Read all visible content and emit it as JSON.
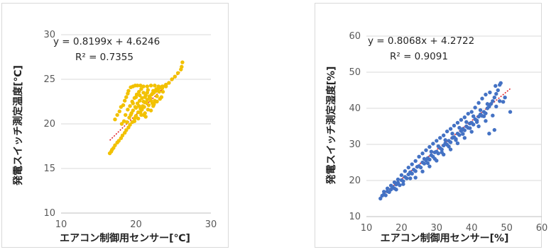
{
  "chart_data": [
    {
      "type": "scatter",
      "xlabel": "エアコン制御用センサー[℃]",
      "ylabel": "発電スイッチ測定温度[℃]",
      "xlim": [
        10,
        30
      ],
      "ylim": [
        10,
        30
      ],
      "xticks": [
        "10",
        "20",
        "30"
      ],
      "yticks": [
        "10",
        "15",
        "20",
        "25",
        "30"
      ],
      "grid": true,
      "trendline": {
        "slope": 0.8199,
        "intercept": 4.6246,
        "x_range": [
          16.5,
          26.2
        ]
      },
      "annotations": {
        "equation": "y = 0.8199x + 4.6246",
        "r2": "R² = 0.7355"
      },
      "color": "#f2c100",
      "trend_color": "#e0252b",
      "points": [
        [
          16.5,
          16.7
        ],
        [
          16.7,
          16.9
        ],
        [
          16.8,
          17.1
        ],
        [
          17.0,
          17.3
        ],
        [
          17.2,
          17.6
        ],
        [
          17.5,
          17.9
        ],
        [
          17.7,
          18.1
        ],
        [
          18.0,
          18.4
        ],
        [
          18.2,
          18.7
        ],
        [
          18.5,
          19.0
        ],
        [
          18.7,
          19.3
        ],
        [
          19.0,
          19.6
        ],
        [
          19.2,
          19.9
        ],
        [
          19.5,
          20.2
        ],
        [
          19.8,
          20.6
        ],
        [
          20.0,
          20.9
        ],
        [
          20.3,
          21.3
        ],
        [
          20.6,
          21.7
        ],
        [
          20.9,
          22.0
        ],
        [
          21.2,
          22.4
        ],
        [
          21.5,
          22.7
        ],
        [
          21.8,
          23.1
        ],
        [
          22.1,
          23.3
        ],
        [
          22.4,
          23.5
        ],
        [
          22.7,
          23.7
        ],
        [
          23.0,
          23.9
        ],
        [
          23.3,
          24.1
        ],
        [
          23.6,
          24.2
        ],
        [
          24.0,
          24.4
        ],
        [
          24.4,
          24.6
        ],
        [
          24.8,
          25.0
        ],
        [
          25.2,
          25.3
        ],
        [
          25.6,
          25.7
        ],
        [
          26.0,
          26.1
        ],
        [
          26.1,
          26.4
        ],
        [
          26.2,
          26.9
        ],
        [
          17.2,
          20.5
        ],
        [
          17.5,
          21.0
        ],
        [
          17.8,
          21.4
        ],
        [
          18.0,
          21.9
        ],
        [
          18.3,
          22.1
        ],
        [
          18.5,
          22.6
        ],
        [
          18.7,
          23.0
        ],
        [
          18.9,
          23.4
        ],
        [
          19.0,
          23.7
        ],
        [
          19.3,
          24.1
        ],
        [
          19.6,
          24.2
        ],
        [
          19.9,
          24.3
        ],
        [
          20.2,
          24.3
        ],
        [
          20.6,
          24.3
        ],
        [
          21.0,
          24.2
        ],
        [
          21.5,
          24.2
        ],
        [
          22.0,
          24.3
        ],
        [
          22.5,
          24.3
        ],
        [
          23.0,
          24.2
        ],
        [
          23.5,
          24.2
        ],
        [
          24.0,
          24.2
        ],
        [
          18.6,
          21.0
        ],
        [
          18.9,
          21.6
        ],
        [
          19.2,
          22.0
        ],
        [
          19.5,
          22.5
        ],
        [
          19.8,
          22.9
        ],
        [
          20.1,
          23.3
        ],
        [
          20.4,
          23.6
        ],
        [
          20.7,
          23.9
        ],
        [
          21.0,
          23.5
        ],
        [
          21.3,
          23.2
        ],
        [
          21.6,
          23.8
        ],
        [
          21.9,
          22.9
        ],
        [
          22.2,
          23.4
        ],
        [
          22.5,
          22.6
        ],
        [
          22.8,
          23.1
        ],
        [
          23.1,
          23.6
        ],
        [
          23.4,
          23.0
        ],
        [
          19.3,
          21.0
        ],
        [
          19.6,
          21.5
        ],
        [
          19.9,
          21.9
        ],
        [
          20.2,
          22.3
        ],
        [
          20.5,
          22.6
        ],
        [
          20.8,
          22.9
        ],
        [
          21.1,
          21.9
        ],
        [
          21.4,
          22.4
        ],
        [
          21.7,
          22.1
        ],
        [
          22.0,
          22.6
        ],
        [
          22.3,
          22.0
        ],
        [
          22.6,
          22.5
        ],
        [
          20.0,
          23.0
        ],
        [
          20.4,
          22.0
        ],
        [
          20.8,
          21.6
        ],
        [
          21.2,
          21.2
        ],
        [
          21.6,
          21.6
        ],
        [
          22.0,
          21.5
        ],
        [
          22.4,
          22.2
        ],
        [
          22.8,
          22.5
        ],
        [
          23.2,
          22.8
        ],
        [
          23.6,
          23.6
        ],
        [
          19.8,
          20.3
        ],
        [
          20.3,
          20.6
        ],
        [
          20.7,
          21.0
        ],
        [
          21.0,
          21.0
        ],
        [
          21.3,
          20.8
        ],
        [
          19.6,
          22.3
        ],
        [
          20.0,
          21.8
        ],
        [
          20.5,
          23.2
        ],
        [
          21.2,
          23.0
        ],
        [
          21.8,
          23.0
        ],
        [
          22.2,
          22.3
        ],
        [
          22.7,
          23.9
        ],
        [
          23.1,
          24.1
        ],
        [
          23.5,
          24.0
        ],
        [
          18.1,
          20.0
        ],
        [
          18.4,
          20.3
        ],
        [
          18.8,
          20.2
        ],
        [
          19.1,
          20.7
        ],
        [
          19.4,
          21.2
        ],
        [
          21.0,
          22.5
        ],
        [
          21.5,
          23.5
        ],
        [
          22.3,
          23.7
        ],
        [
          20.6,
          21.3
        ]
      ]
    },
    {
      "type": "scatter",
      "xlabel": "エアコン制御用センサー[%]",
      "ylabel": "発電スイッチ測定湿度[%]",
      "xlim": [
        10,
        60
      ],
      "ylim": [
        10,
        60
      ],
      "xticks": [
        "10",
        "20",
        "30",
        "40",
        "50",
        "60"
      ],
      "yticks": [
        "10",
        "20",
        "30",
        "40",
        "50",
        "60"
      ],
      "grid": true,
      "trendline": {
        "slope": 0.8068,
        "intercept": 4.2722,
        "x_range": [
          14,
          51
        ]
      },
      "annotations": {
        "equation": "y = 0.8068x + 4.2722",
        "r2": "R² = 0.9091"
      },
      "color": "#4472c4",
      "trend_color": "#e0252b",
      "points": [
        [
          14.0,
          15.0
        ],
        [
          14.5,
          15.8
        ],
        [
          15.0,
          16.2
        ],
        [
          15.5,
          15.9
        ],
        [
          16.0,
          17.0
        ],
        [
          16.5,
          16.8
        ],
        [
          17.0,
          17.5
        ],
        [
          17.5,
          18.2
        ],
        [
          18.0,
          17.8
        ],
        [
          18.5,
          18.9
        ],
        [
          19.0,
          19.4
        ],
        [
          19.5,
          18.7
        ],
        [
          20.0,
          20.1
        ],
        [
          20.5,
          19.8
        ],
        [
          21.0,
          21.0
        ],
        [
          21.5,
          20.6
        ],
        [
          22.0,
          21.7
        ],
        [
          22.5,
          22.3
        ],
        [
          23.0,
          21.9
        ],
        [
          23.5,
          23.0
        ],
        [
          24.0,
          22.6
        ],
        [
          24.5,
          23.8
        ],
        [
          25.0,
          24.0
        ],
        [
          25.5,
          23.6
        ],
        [
          26.0,
          25.0
        ],
        [
          26.5,
          24.7
        ],
        [
          27.0,
          25.6
        ],
        [
          27.5,
          26.2
        ],
        [
          28.0,
          25.8
        ],
        [
          28.5,
          27.0
        ],
        [
          29.0,
          26.6
        ],
        [
          29.5,
          27.8
        ],
        [
          30.0,
          28.0
        ],
        [
          30.5,
          27.5
        ],
        [
          31.0,
          29.0
        ],
        [
          31.5,
          28.6
        ],
        [
          32.0,
          29.7
        ],
        [
          32.5,
          30.3
        ],
        [
          33.0,
          29.9
        ],
        [
          33.5,
          31.0
        ],
        [
          34.0,
          30.6
        ],
        [
          34.5,
          31.8
        ],
        [
          35.0,
          32.0
        ],
        [
          35.5,
          31.5
        ],
        [
          36.0,
          33.0
        ],
        [
          36.5,
          32.6
        ],
        [
          37.0,
          33.7
        ],
        [
          37.5,
          34.3
        ],
        [
          38.0,
          33.9
        ],
        [
          38.5,
          35.0
        ],
        [
          39.0,
          34.6
        ],
        [
          39.5,
          35.8
        ],
        [
          40.0,
          36.0
        ],
        [
          40.5,
          35.5
        ],
        [
          41.0,
          37.0
        ],
        [
          41.5,
          36.6
        ],
        [
          42.0,
          37.7
        ],
        [
          42.5,
          38.3
        ],
        [
          43.0,
          37.9
        ],
        [
          43.5,
          39.0
        ],
        [
          44.0,
          38.6
        ],
        [
          44.5,
          40.0
        ],
        [
          45.0,
          40.5
        ],
        [
          45.5,
          41.2
        ],
        [
          46.0,
          42.0
        ],
        [
          46.5,
          43.0
        ],
        [
          47.0,
          44.0
        ],
        [
          47.5,
          45.0
        ],
        [
          48.0,
          46.5
        ],
        [
          48.3,
          47.0
        ],
        [
          46.8,
          46.2
        ],
        [
          45.2,
          44.4
        ],
        [
          44.0,
          43.8
        ],
        [
          43.0,
          42.7
        ],
        [
          42.0,
          41.5
        ],
        [
          41.0,
          40.2
        ],
        [
          40.0,
          39.0
        ],
        [
          39.0,
          38.5
        ],
        [
          38.0,
          37.5
        ],
        [
          37.0,
          36.8
        ],
        [
          36.0,
          36.0
        ],
        [
          35.0,
          35.2
        ],
        [
          34.0,
          34.3
        ],
        [
          33.0,
          33.6
        ],
        [
          32.0,
          32.5
        ],
        [
          31.0,
          31.8
        ],
        [
          30.0,
          31.0
        ],
        [
          29.0,
          30.2
        ],
        [
          28.0,
          29.3
        ],
        [
          27.0,
          28.4
        ],
        [
          26.0,
          27.5
        ],
        [
          25.0,
          26.6
        ],
        [
          24.0,
          25.4
        ],
        [
          23.0,
          24.5
        ],
        [
          22.0,
          23.6
        ],
        [
          21.0,
          22.6
        ],
        [
          20.0,
          21.5
        ],
        [
          19.0,
          20.3
        ],
        [
          18.0,
          19.5
        ],
        [
          17.0,
          18.6
        ],
        [
          16.0,
          17.8
        ],
        [
          15.0,
          16.9
        ],
        [
          24.0,
          20.8
        ],
        [
          26.0,
          22.5
        ],
        [
          28.0,
          23.9
        ],
        [
          30.0,
          25.5
        ],
        [
          32.0,
          27.2
        ],
        [
          34.0,
          28.6
        ],
        [
          36.0,
          30.3
        ],
        [
          38.0,
          31.8
        ],
        [
          40.0,
          33.5
        ],
        [
          42.0,
          35.0
        ],
        [
          44.0,
          36.5
        ],
        [
          46.0,
          38.0
        ],
        [
          47.0,
          40.5
        ],
        [
          48.0,
          42.0
        ],
        [
          49.0,
          41.8
        ],
        [
          49.5,
          43.0
        ],
        [
          46.5,
          34.0
        ],
        [
          45.0,
          33.0
        ],
        [
          51.0,
          39.0
        ],
        [
          27.5,
          24.8
        ],
        [
          29.5,
          26.0
        ],
        [
          31.5,
          27.8
        ],
        [
          33.5,
          29.4
        ],
        [
          35.5,
          31.2
        ],
        [
          37.5,
          32.9
        ],
        [
          39.5,
          34.5
        ],
        [
          41.5,
          36.2
        ],
        [
          43.5,
          37.8
        ],
        [
          22.5,
          20.6
        ],
        [
          20.5,
          19.0
        ],
        [
          18.5,
          17.5
        ],
        [
          26.5,
          26.0
        ],
        [
          28.5,
          28.0
        ],
        [
          30.5,
          29.5
        ],
        [
          32.5,
          31.2
        ],
        [
          34.5,
          33.0
        ],
        [
          36.5,
          34.6
        ],
        [
          38.5,
          36.2
        ],
        [
          40.5,
          37.8
        ],
        [
          42.5,
          39.5
        ],
        [
          44.5,
          41.2
        ]
      ]
    }
  ]
}
